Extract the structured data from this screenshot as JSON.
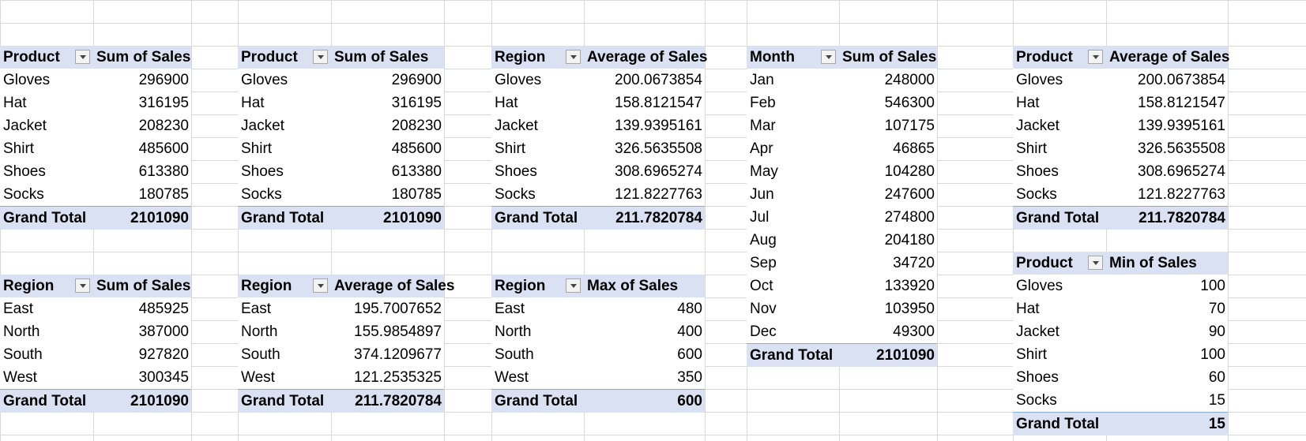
{
  "pivots": [
    {
      "id": "p1",
      "header": [
        "Product",
        "Sum of Sales"
      ],
      "rows": [
        [
          "Gloves",
          "296900"
        ],
        [
          "Hat",
          "316195"
        ],
        [
          "Jacket",
          "208230"
        ],
        [
          "Shirt",
          "485600"
        ],
        [
          "Shoes",
          "613380"
        ],
        [
          "Socks",
          "180785"
        ]
      ],
      "total": [
        "Grand Total",
        "2101090"
      ]
    },
    {
      "id": "p2",
      "header": [
        "Product",
        "Sum of Sales"
      ],
      "rows": [
        [
          "Gloves",
          "296900"
        ],
        [
          "Hat",
          "316195"
        ],
        [
          "Jacket",
          "208230"
        ],
        [
          "Shirt",
          "485600"
        ],
        [
          "Shoes",
          "613380"
        ],
        [
          "Socks",
          "180785"
        ]
      ],
      "total": [
        "Grand Total",
        "2101090"
      ]
    },
    {
      "id": "p3",
      "header": [
        "Region",
        "Average of Sales"
      ],
      "rows": [
        [
          "Gloves",
          "200.0673854"
        ],
        [
          "Hat",
          "158.8121547"
        ],
        [
          "Jacket",
          "139.9395161"
        ],
        [
          "Shirt",
          "326.5635508"
        ],
        [
          "Shoes",
          "308.6965274"
        ],
        [
          "Socks",
          "121.8227763"
        ]
      ],
      "total": [
        "Grand Total",
        "211.7820784"
      ]
    },
    {
      "id": "p4",
      "header": [
        "Month",
        "Sum of Sales"
      ],
      "rows": [
        [
          "Jan",
          "248000"
        ],
        [
          "Feb",
          "546300"
        ],
        [
          "Mar",
          "107175"
        ],
        [
          "Apr",
          "46865"
        ],
        [
          "May",
          "104280"
        ],
        [
          "Jun",
          "247600"
        ],
        [
          "Jul",
          "274800"
        ],
        [
          "Aug",
          "204180"
        ],
        [
          "Sep",
          "34720"
        ],
        [
          "Oct",
          "133920"
        ],
        [
          "Nov",
          "103950"
        ],
        [
          "Dec",
          "49300"
        ]
      ],
      "total": [
        "Grand Total",
        "2101090"
      ]
    },
    {
      "id": "p5",
      "header": [
        "Product",
        "Average of Sales"
      ],
      "rows": [
        [
          "Gloves",
          "200.0673854"
        ],
        [
          "Hat",
          "158.8121547"
        ],
        [
          "Jacket",
          "139.9395161"
        ],
        [
          "Shirt",
          "326.5635508"
        ],
        [
          "Shoes",
          "308.6965274"
        ],
        [
          "Socks",
          "121.8227763"
        ]
      ],
      "total": [
        "Grand Total",
        "211.7820784"
      ]
    },
    {
      "id": "p6",
      "header": [
        "Region",
        "Sum of Sales"
      ],
      "rows": [
        [
          "East",
          "485925"
        ],
        [
          "North",
          "387000"
        ],
        [
          "South",
          "927820"
        ],
        [
          "West",
          "300345"
        ]
      ],
      "total": [
        "Grand Total",
        "2101090"
      ]
    },
    {
      "id": "p7",
      "header": [
        "Region",
        "Average of Sales"
      ],
      "rows": [
        [
          "East",
          "195.7007652"
        ],
        [
          "North",
          "155.9854897"
        ],
        [
          "South",
          "374.1209677"
        ],
        [
          "West",
          "121.2535325"
        ]
      ],
      "total": [
        "Grand Total",
        "211.7820784"
      ]
    },
    {
      "id": "p8",
      "header": [
        "Region",
        "Max of Sales"
      ],
      "rows": [
        [
          "East",
          "480"
        ],
        [
          "North",
          "400"
        ],
        [
          "South",
          "600"
        ],
        [
          "West",
          "350"
        ]
      ],
      "total": [
        "Grand Total",
        "600"
      ]
    },
    {
      "id": "p9",
      "header": [
        "Product",
        "Min of Sales"
      ],
      "rows": [
        [
          "Gloves",
          "100"
        ],
        [
          "Hat",
          "70"
        ],
        [
          "Jacket",
          "90"
        ],
        [
          "Shirt",
          "100"
        ],
        [
          "Shoes",
          "60"
        ],
        [
          "Socks",
          "15"
        ]
      ],
      "total": [
        "Grand Total",
        "15"
      ]
    }
  ]
}
